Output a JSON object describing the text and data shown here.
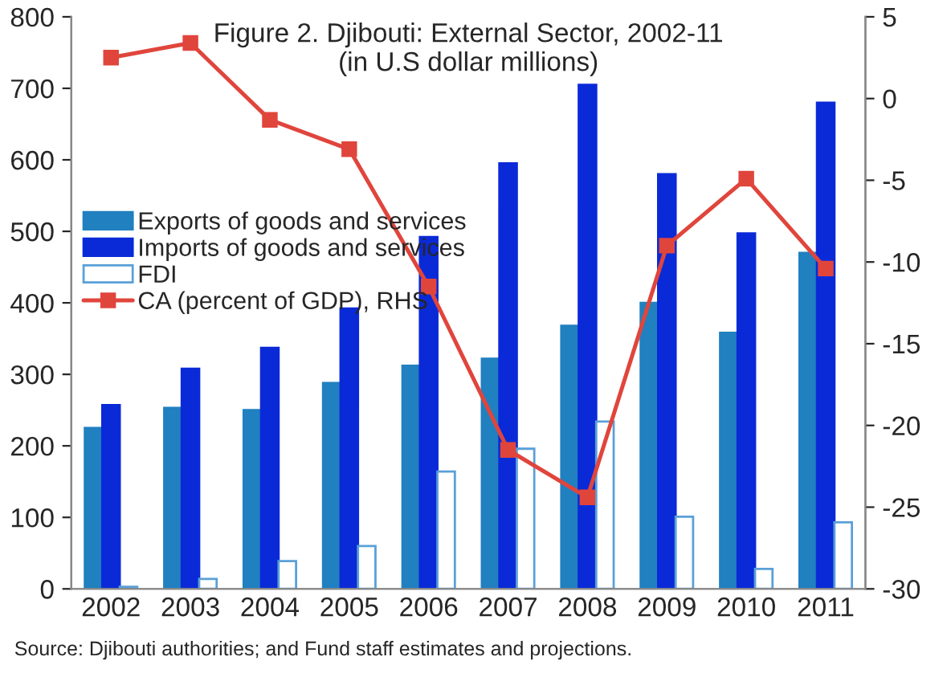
{
  "chart_data": {
    "type": "bar",
    "title": "Figure 2. Djibouti: External Sector, 2002-11\n(in U.S dollar millions)",
    "categories": [
      "2002",
      "2003",
      "2004",
      "2005",
      "2006",
      "2007",
      "2008",
      "2009",
      "2010",
      "2011"
    ],
    "series": [
      {
        "name": "Exports of goods and services",
        "color": "#2080c0",
        "values": [
          225,
          253,
          250,
          288,
          312,
          322,
          368,
          400,
          358,
          470
        ]
      },
      {
        "name": "Imports of goods and services",
        "color": "#0a2ad8",
        "values": [
          257,
          308,
          337,
          392,
          492,
          595,
          705,
          580,
          497,
          680
        ]
      },
      {
        "name": "FDI",
        "color": "#ffffff",
        "values": [
          3,
          14,
          39,
          60,
          164,
          196,
          234,
          101,
          28,
          93
        ]
      },
      {
        "name": "CA (percent of GDP), RHS",
        "type": "line",
        "axis": "y2",
        "color": "#e0453c",
        "marker": "square",
        "values": [
          2.5,
          3.4,
          -1.3,
          -3.1,
          -11.5,
          -21.5,
          -24.4,
          -9.0,
          -4.9,
          -10.4
        ]
      }
    ],
    "ylim": [
      0,
      800
    ],
    "yticks": [
      0,
      100,
      200,
      300,
      400,
      500,
      600,
      700,
      800
    ],
    "y2lim": [
      -30,
      5
    ],
    "y2ticks": [
      -30,
      -25,
      -20,
      -15,
      -10,
      -5,
      0,
      5
    ],
    "grid": false,
    "legend": "center left",
    "annotations": [
      "Source: Djibouti authorities; and Fund staff estimates and projections."
    ]
  }
}
